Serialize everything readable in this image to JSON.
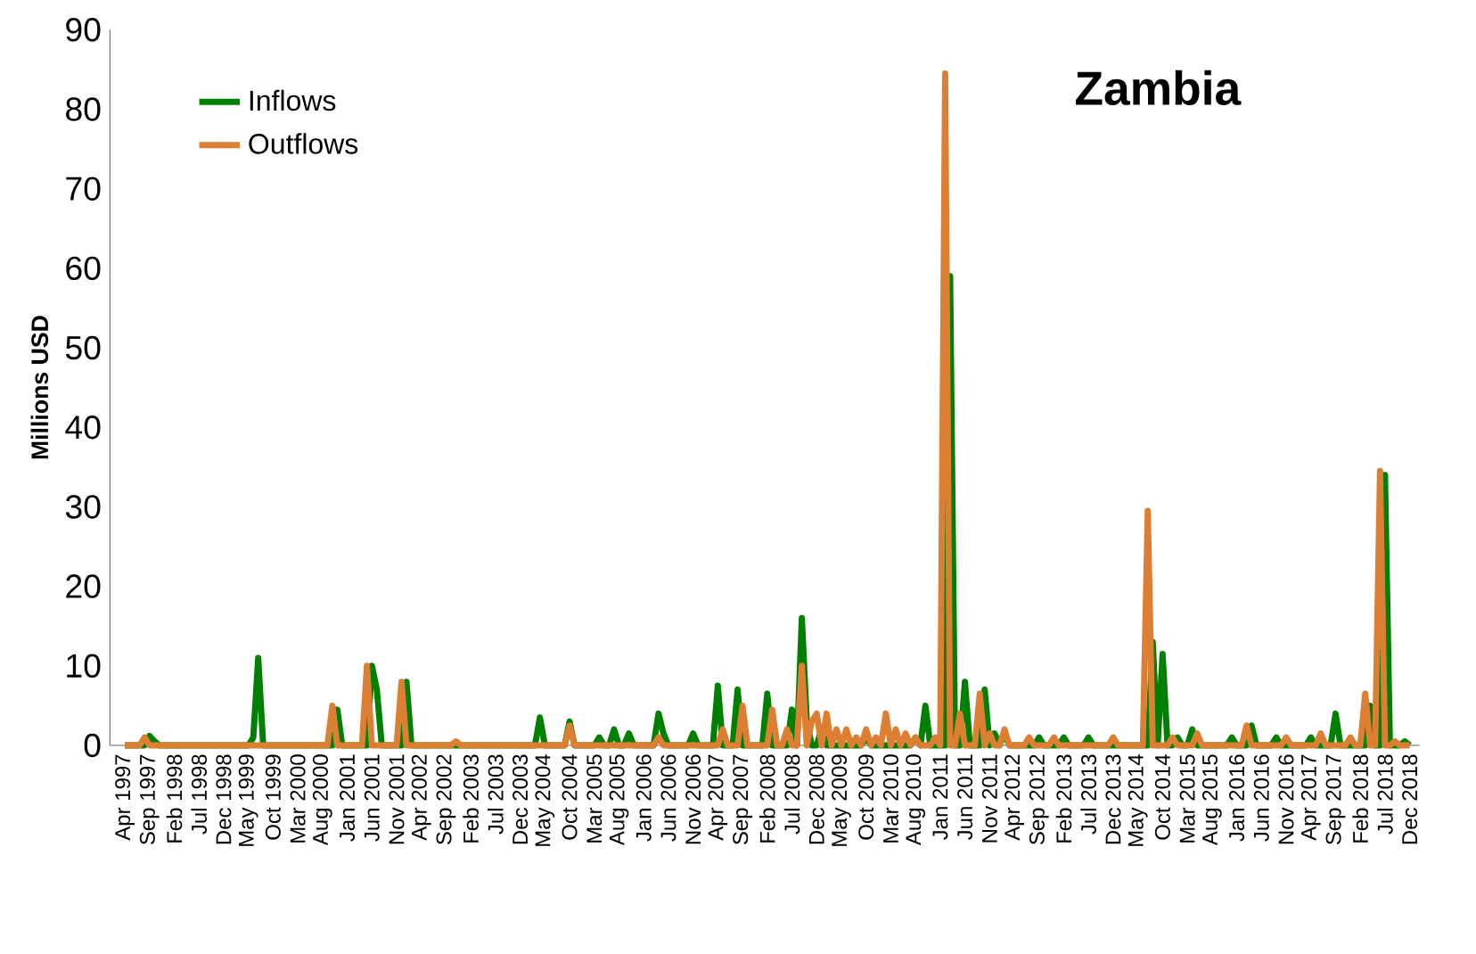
{
  "chart_data": {
    "type": "line",
    "title": "Zambia",
    "ylabel": "Millions USD",
    "ylim": [
      0,
      90
    ],
    "yticks": [
      0,
      10,
      20,
      30,
      40,
      50,
      60,
      70,
      80,
      90
    ],
    "legend": "top left",
    "categories": [
      "Apr 1997",
      null,
      null,
      null,
      null,
      "Sep 1997",
      null,
      null,
      null,
      null,
      "Feb 1998",
      null,
      null,
      null,
      null,
      "Jul 1998",
      null,
      null,
      null,
      null,
      "Dec 1998",
      null,
      null,
      null,
      null,
      "May 1999",
      null,
      null,
      null,
      null,
      "Oct 1999",
      null,
      null,
      null,
      null,
      "Mar 2000",
      null,
      null,
      null,
      null,
      "Aug 2000",
      null,
      null,
      null,
      null,
      "Jan 2001",
      null,
      null,
      null,
      null,
      "Jun 2001",
      null,
      null,
      null,
      null,
      "Nov 2001",
      null,
      null,
      null,
      null,
      "Apr 2002",
      null,
      null,
      null,
      null,
      "Sep 2002",
      null,
      null,
      null,
      null,
      "Feb 2003",
      null,
      null,
      null,
      null,
      "Jul 2003",
      null,
      null,
      null,
      null,
      "Dec 2003",
      null,
      null,
      null,
      null,
      "May 2004",
      null,
      null,
      null,
      null,
      "Oct 2004",
      null,
      null,
      null,
      null,
      "Mar 2005",
      null,
      null,
      null,
      null,
      "Aug 2005",
      null,
      null,
      null,
      null,
      "Jan 2006",
      null,
      null,
      null,
      null,
      "Jun 2006",
      null,
      null,
      null,
      null,
      "Nov 2006",
      null,
      null,
      null,
      null,
      "Apr 2007",
      null,
      null,
      null,
      null,
      "Sep 2007",
      null,
      null,
      null,
      null,
      "Feb 2008",
      null,
      null,
      null,
      null,
      "Jul 2008",
      null,
      null,
      null,
      null,
      "Dec 2008",
      null,
      null,
      null,
      null,
      "May 2009",
      null,
      null,
      null,
      null,
      "Oct 2009",
      null,
      null,
      null,
      null,
      "Mar 2010",
      null,
      null,
      null,
      null,
      "Aug 2010",
      null,
      null,
      null,
      null,
      "Jan 2011",
      null,
      null,
      null,
      null,
      "Jun 2011",
      null,
      null,
      null,
      null,
      "Nov 2011",
      null,
      null,
      null,
      null,
      "Apr 2012",
      null,
      null,
      null,
      null,
      "Sep 2012",
      null,
      null,
      null,
      null,
      "Feb 2013",
      null,
      null,
      null,
      null,
      "Jul 2013",
      null,
      null,
      null,
      null,
      "Dec 2013",
      null,
      null,
      null,
      null,
      "May 2014",
      null,
      null,
      null,
      null,
      "Oct 2014",
      null,
      null,
      null,
      null,
      "Mar 2015",
      null,
      null,
      null,
      null,
      "Aug 2015",
      null,
      null,
      null,
      null,
      "Jan 2016",
      null,
      null,
      null,
      null,
      "Jun 2016",
      null,
      null,
      null,
      null,
      "Nov 2016",
      null,
      null,
      null,
      null,
      "Apr 2017",
      null,
      null,
      null,
      null,
      "Sep 2017",
      null,
      null,
      null,
      null,
      "Feb 2018",
      null,
      null,
      null,
      null,
      "Jul 2018",
      null,
      null,
      null,
      null,
      "Dec 2018"
    ],
    "series": [
      {
        "name": "Inflows",
        "color": "#008000",
        "values": [
          0,
          0,
          0,
          0,
          0,
          1.2,
          0.5,
          0,
          0,
          0,
          0,
          0,
          0,
          0,
          0,
          0,
          0,
          0,
          0,
          0,
          0,
          0,
          0,
          0,
          0,
          0,
          1,
          11,
          0,
          0,
          0,
          0,
          0,
          0,
          0,
          0,
          0,
          0,
          0,
          0,
          0,
          0,
          0,
          4.5,
          0,
          0,
          0,
          0,
          0,
          0,
          10,
          7,
          0,
          0,
          0,
          0,
          0,
          8,
          0,
          0,
          0,
          0,
          0,
          0,
          0,
          0,
          0,
          0,
          0,
          0,
          0,
          0,
          0,
          0,
          0,
          0,
          0,
          0,
          0,
          0,
          0,
          0,
          0,
          0,
          3.5,
          0,
          0,
          0,
          0,
          0,
          3,
          0,
          0,
          0,
          0,
          0,
          1,
          0,
          0,
          2,
          0,
          0,
          1.5,
          0,
          0,
          0,
          0,
          0,
          4,
          1.5,
          0,
          0,
          0,
          0,
          0,
          1.5,
          0,
          0,
          0,
          0,
          7.5,
          0,
          0,
          0,
          7,
          0,
          0,
          0,
          0,
          0,
          6.5,
          0,
          0,
          0,
          0,
          4.5,
          0,
          16,
          3,
          0,
          0,
          2,
          0,
          0,
          0,
          0,
          0,
          0,
          0,
          0,
          1,
          0,
          0,
          0,
          0,
          0,
          0,
          0,
          0,
          0,
          1,
          0,
          5,
          0,
          0,
          0,
          0,
          59,
          0,
          0,
          8,
          0,
          0,
          0,
          7,
          0,
          1.5,
          0,
          1.5,
          0,
          0,
          0,
          0,
          0,
          0,
          1,
          0,
          0,
          0,
          0,
          1,
          0,
          0,
          0,
          0,
          1,
          0,
          0,
          0,
          0,
          0,
          0,
          0,
          0,
          0,
          0,
          0,
          0,
          13,
          0,
          11.5,
          0,
          0,
          1,
          0,
          0,
          2,
          0,
          0,
          0,
          0,
          0,
          0,
          0,
          1,
          0,
          0,
          0,
          2.5,
          0,
          0,
          0,
          0,
          1,
          0,
          0,
          0,
          0,
          0,
          0,
          1,
          0,
          0,
          0,
          0,
          4,
          0,
          0,
          0,
          0,
          0,
          0,
          5,
          0,
          0,
          34,
          0,
          0,
          0,
          0.5,
          0
        ]
      },
      {
        "name": "Outflows",
        "color": "#dd7f33",
        "values": [
          0,
          0,
          0,
          0,
          1,
          0,
          0,
          0,
          0,
          0,
          0,
          0,
          0,
          0,
          0,
          0,
          0,
          0,
          0,
          0,
          0,
          0,
          0,
          0,
          0,
          0,
          0,
          0,
          0,
          0,
          0,
          0,
          0,
          0,
          0,
          0,
          0,
          0,
          0,
          0,
          0,
          0,
          5,
          0,
          0,
          0,
          0,
          0,
          0,
          10,
          0,
          0,
          0,
          0,
          0,
          0,
          8,
          0,
          0,
          0,
          0,
          0,
          0,
          0,
          0,
          0,
          0,
          0.5,
          0,
          0,
          0,
          0,
          0,
          0,
          0,
          0,
          0,
          0,
          0,
          0,
          0,
          0,
          0,
          0,
          0,
          0,
          0,
          0,
          0,
          0,
          2.5,
          0,
          0,
          0,
          0,
          0,
          0,
          0,
          0,
          0,
          0,
          0,
          0,
          0,
          0,
          0,
          0,
          0,
          1,
          0,
          0,
          0,
          0,
          0,
          0,
          0,
          0,
          0,
          0,
          0,
          0,
          2,
          0,
          0,
          0,
          5,
          0,
          0,
          0,
          0,
          0,
          4.5,
          0,
          0,
          2,
          0,
          0,
          10,
          0,
          3,
          4,
          0,
          4,
          0,
          2,
          0,
          2,
          0,
          1,
          0,
          2,
          0,
          1,
          0,
          4,
          0,
          2,
          0,
          1.5,
          0,
          1,
          0,
          0,
          0,
          1,
          0,
          84.5,
          0,
          0,
          4,
          0,
          0,
          0,
          6.5,
          0,
          1.5,
          0,
          0,
          2,
          0,
          0,
          0,
          0,
          1,
          0,
          0,
          0,
          0,
          1,
          0,
          0,
          0,
          0,
          0,
          0,
          0,
          0,
          0,
          0,
          0,
          1,
          0,
          0,
          0,
          0,
          0,
          0,
          29.5,
          0,
          0,
          0,
          0,
          1,
          0,
          0,
          0,
          0,
          1.5,
          0,
          0,
          0,
          0,
          0,
          0,
          0,
          0,
          0,
          2.5,
          0,
          0,
          0,
          0,
          0,
          0,
          0,
          1,
          0,
          0,
          0,
          0,
          0,
          0,
          1.5,
          0,
          0,
          0,
          0,
          0,
          1,
          0,
          0,
          6.5,
          0,
          0,
          34.5,
          0,
          0,
          0.5,
          0,
          0,
          0
        ]
      }
    ]
  }
}
